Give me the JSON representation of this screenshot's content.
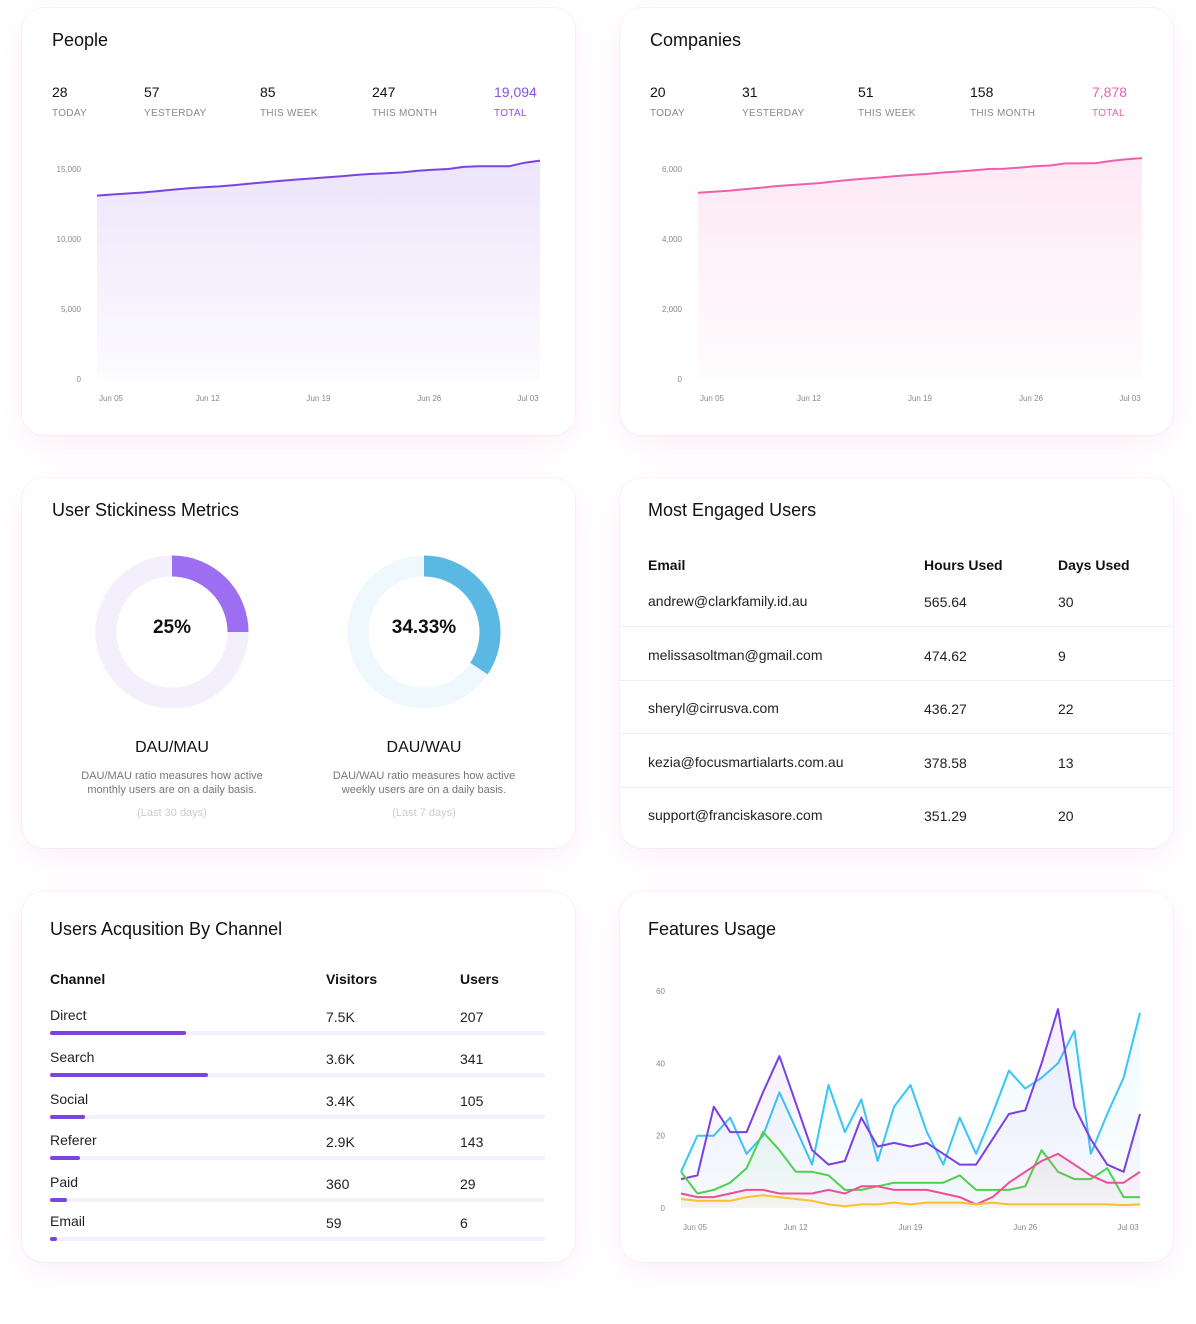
{
  "people": {
    "title": "People",
    "stats": [
      {
        "value": "28",
        "label": "TODAY"
      },
      {
        "value": "57",
        "label": "YESTERDAY"
      },
      {
        "value": "85",
        "label": "THIS WEEK"
      },
      {
        "value": "247",
        "label": "THIS MONTH"
      },
      {
        "value": "19,094",
        "label": "TOTAL"
      }
    ],
    "accent": "#8b4ee6"
  },
  "companies": {
    "title": "Companies",
    "stats": [
      {
        "value": "20",
        "label": "TODAY"
      },
      {
        "value": "31",
        "label": "YESTERDAY"
      },
      {
        "value": "51",
        "label": "THIS WEEK"
      },
      {
        "value": "158",
        "label": "THIS MONTH"
      },
      {
        "value": "7,878",
        "label": "TOTAL"
      }
    ],
    "accent": "#ec5fb4"
  },
  "stickiness": {
    "title": "User Stickiness Metrics",
    "metrics": [
      {
        "value": "25%",
        "fraction": 0.25,
        "name": "DAU/MAU",
        "desc1": "DAU/MAU ratio measures how active",
        "desc2": "monthly users are on a daily basis.",
        "note": "(Last 30 days)",
        "color": "#9d6ef2",
        "track": "#f4effd"
      },
      {
        "value": "34.33%",
        "fraction": 0.3433,
        "name": "DAU/WAU",
        "desc1": "DAU/WAU ratio measures how active",
        "desc2": "weekly users are on a daily basis.",
        "note": "(Last 7 days)",
        "color": "#5bb8e2",
        "track": "#eef8fd"
      }
    ]
  },
  "engaged": {
    "title": "Most Engaged Users",
    "headers": [
      "Email",
      "Hours Used",
      "Days Used"
    ],
    "rows": [
      [
        "andrew@clarkfamily.id.au",
        "565.64",
        "30"
      ],
      [
        "melissasoltman@gmail.com",
        "474.62",
        "9"
      ],
      [
        "sheryl@cirrusva.com",
        "436.27",
        "22"
      ],
      [
        "kezia@focusmartialarts.com.au",
        "378.58",
        "13"
      ],
      [
        "support@franciskasore.com",
        "351.29",
        "20"
      ]
    ]
  },
  "acquisition": {
    "title": "Users Acqusition By Channel",
    "headers": [
      "Channel",
      "Visitors",
      "Users"
    ],
    "rows": [
      {
        "channel": "Direct",
        "visitors": "7.5K",
        "users": "207",
        "bar": 0.275
      },
      {
        "channel": "Search",
        "visitors": "3.6K",
        "users": "341",
        "bar": 0.32
      },
      {
        "channel": "Social",
        "visitors": "3.4K",
        "users": "105",
        "bar": 0.07
      },
      {
        "channel": "Referer",
        "visitors": "2.9K",
        "users": "143",
        "bar": 0.06
      },
      {
        "channel": "Paid",
        "visitors": "360",
        "users": "29",
        "bar": 0.035
      },
      {
        "channel": "Email",
        "visitors": "59",
        "users": "6",
        "bar": 0.015
      }
    ]
  },
  "features": {
    "title": "Features Usage"
  },
  "chart_data": [
    {
      "type": "area",
      "chart": "people",
      "xticks": [
        "Jun 05",
        "Jun 12",
        "Jun 19",
        "Jun 26",
        "Jul 03"
      ],
      "yticks": [
        "0",
        "5,000",
        "10,000",
        "15,000"
      ],
      "ylim": [
        0,
        15000
      ],
      "series": [
        {
          "color": "#7b44e0",
          "values": [
            13100,
            13180,
            13250,
            13320,
            13420,
            13530,
            13620,
            13700,
            13760,
            13850,
            13960,
            14060,
            14150,
            14240,
            14320,
            14400,
            14480,
            14580,
            14650,
            14700,
            14760,
            14880,
            14940,
            15000,
            15150,
            15200,
            15200,
            15200,
            15450,
            15600
          ]
        }
      ]
    },
    {
      "type": "area",
      "chart": "companies",
      "xticks": [
        "Jun 05",
        "Jun 12",
        "Jun 19",
        "Jun 26",
        "Jul 03"
      ],
      "yticks": [
        "0",
        "2,000",
        "4,000",
        "6,000"
      ],
      "ylim": [
        0,
        6000
      ],
      "series": [
        {
          "color": "#ef5fae",
          "values": [
            5320,
            5350,
            5380,
            5420,
            5460,
            5510,
            5540,
            5570,
            5600,
            5650,
            5690,
            5730,
            5760,
            5800,
            5830,
            5860,
            5900,
            5930,
            5960,
            6000,
            6010,
            6040,
            6080,
            6100,
            6160,
            6160,
            6170,
            6230,
            6280,
            6310
          ]
        }
      ]
    },
    {
      "type": "line",
      "chart": "features",
      "xticks": [
        "Jun 05",
        "Jun 12",
        "Jun 19",
        "Jun 26",
        "Jul 03"
      ],
      "yticks": [
        "0",
        "20",
        "40",
        "60"
      ],
      "ylim": [
        0,
        60
      ],
      "series": [
        {
          "color": "#38c6f4",
          "values": [
            10,
            20,
            20,
            25,
            15,
            20,
            32,
            22,
            12,
            34,
            21,
            30,
            13,
            28,
            34,
            21,
            12,
            25,
            15,
            26,
            38,
            33,
            36,
            40,
            49,
            15,
            26,
            36,
            54
          ]
        },
        {
          "color": "#7b3fe4",
          "values": [
            8,
            9,
            28,
            21,
            21,
            32,
            42,
            29,
            16,
            12,
            13,
            25,
            17,
            18,
            17,
            18,
            15,
            12,
            12,
            19,
            26,
            27,
            40,
            55,
            28,
            19,
            12,
            10,
            26
          ]
        },
        {
          "color": "#4fd04f",
          "values": [
            10,
            4,
            5,
            7,
            11,
            21,
            16,
            10,
            10,
            9,
            5,
            5,
            6,
            7,
            7,
            7,
            7,
            9,
            5,
            5,
            5,
            6,
            16,
            10,
            8,
            8,
            11,
            3,
            3
          ]
        },
        {
          "color": "#ec4f9a",
          "values": [
            4,
            3,
            3,
            4,
            5,
            5,
            4,
            4,
            4,
            5,
            4,
            6,
            6,
            5,
            5,
            5,
            4,
            3,
            1,
            3,
            7,
            10,
            13,
            15,
            12,
            9,
            7,
            7,
            10
          ]
        },
        {
          "color": "#fbc02d",
          "values": [
            2.5,
            2,
            2,
            2,
            3,
            3.5,
            3,
            2.5,
            2,
            1,
            0.5,
            1,
            1,
            1.5,
            1,
            1.5,
            1.5,
            1.5,
            1,
            1.5,
            1,
            1,
            1,
            1,
            1,
            1,
            1,
            0.8,
            1
          ]
        }
      ]
    }
  ]
}
